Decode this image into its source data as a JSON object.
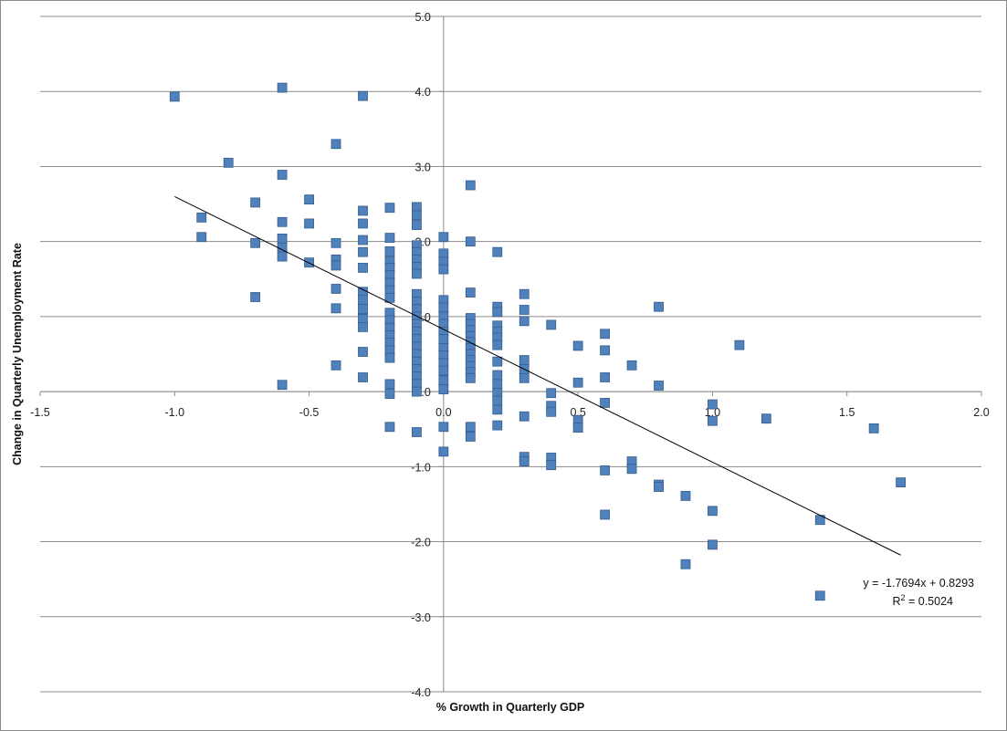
{
  "chart_data": {
    "type": "scatter",
    "title": "",
    "xlabel": "% Growth in Quarterly GDP",
    "ylabel": "Change in Quarterly Unemployment Rate",
    "xlim": [
      -1.5,
      2.0
    ],
    "ylim": [
      -4.0,
      5.0
    ],
    "x_ticks": [
      -1.5,
      -1.0,
      -0.5,
      0.0,
      0.5,
      1.0,
      1.5,
      2.0
    ],
    "y_ticks": [
      5.0,
      4.0,
      3.0,
      2.0,
      1.0,
      0.0,
      -1.0,
      -2.0,
      -3.0,
      -4.0
    ],
    "x_tick_labels": [
      "-1.5",
      "-1.0",
      "-0.5",
      "0.0",
      "0.5",
      "1.0",
      "1.5",
      "2.0"
    ],
    "y_tick_labels": [
      "5.0",
      "4.0",
      "3.0",
      "2.0",
      "1.0",
      "0.0",
      "-1.0",
      "-2.0",
      "-3.0",
      "-4.0"
    ],
    "grid": "horizontal",
    "marker_color": "#4f81bd",
    "marker_edge": "#385d8a",
    "trendline": {
      "slope": -1.7694,
      "intercept": 0.8293,
      "x_range": [
        -1.0,
        1.7
      ],
      "equation": "y = -1.7694x + 0.8293",
      "r2_prefix": "R",
      "r2_suffix": " = 0.5024",
      "r2_sup": "2"
    },
    "points": [
      [
        -1.0,
        3.93
      ],
      [
        -0.6,
        4.05
      ],
      [
        -0.3,
        3.94
      ],
      [
        -0.4,
        3.3
      ],
      [
        -0.8,
        3.05
      ],
      [
        -0.6,
        2.89
      ],
      [
        -0.9,
        2.32
      ],
      [
        -0.9,
        2.06
      ],
      [
        -0.7,
        2.52
      ],
      [
        -0.7,
        1.98
      ],
      [
        -0.7,
        1.26
      ],
      [
        -0.6,
        2.26
      ],
      [
        -0.6,
        2.04
      ],
      [
        -0.6,
        1.92
      ],
      [
        -0.6,
        1.8
      ],
      [
        -0.6,
        0.09
      ],
      [
        -0.5,
        2.56
      ],
      [
        -0.5,
        2.24
      ],
      [
        -0.5,
        1.72
      ],
      [
        -0.4,
        1.98
      ],
      [
        -0.4,
        1.76
      ],
      [
        -0.4,
        1.68
      ],
      [
        -0.4,
        1.37
      ],
      [
        -0.4,
        1.11
      ],
      [
        -0.4,
        0.35
      ],
      [
        -0.3,
        2.41
      ],
      [
        -0.3,
        2.24
      ],
      [
        -0.3,
        2.02
      ],
      [
        -0.3,
        1.86
      ],
      [
        -0.3,
        1.65
      ],
      [
        -0.3,
        1.33
      ],
      [
        -0.3,
        1.22
      ],
      [
        -0.3,
        1.1
      ],
      [
        -0.3,
        0.97
      ],
      [
        -0.3,
        0.86
      ],
      [
        -0.3,
        0.53
      ],
      [
        -0.3,
        0.19
      ],
      [
        -0.2,
        2.45
      ],
      [
        -0.2,
        2.05
      ],
      [
        -0.2,
        1.87
      ],
      [
        -0.2,
        1.74
      ],
      [
        -0.2,
        1.65
      ],
      [
        -0.2,
        1.55
      ],
      [
        -0.2,
        1.45
      ],
      [
        -0.2,
        1.35
      ],
      [
        -0.2,
        1.25
      ],
      [
        -0.2,
        1.05
      ],
      [
        -0.2,
        0.95
      ],
      [
        -0.2,
        0.85
      ],
      [
        -0.2,
        0.75
      ],
      [
        -0.2,
        0.65
      ],
      [
        -0.2,
        0.55
      ],
      [
        -0.2,
        0.45
      ],
      [
        -0.2,
        0.1
      ],
      [
        -0.2,
        -0.03
      ],
      [
        -0.2,
        -0.47
      ],
      [
        -0.1,
        2.46
      ],
      [
        -0.1,
        2.35
      ],
      [
        -0.1,
        2.22
      ],
      [
        -0.1,
        1.95
      ],
      [
        -0.1,
        1.86
      ],
      [
        -0.1,
        1.76
      ],
      [
        -0.1,
        1.66
      ],
      [
        -0.1,
        1.57
      ],
      [
        -0.1,
        1.3
      ],
      [
        -0.1,
        1.2
      ],
      [
        -0.1,
        1.1
      ],
      [
        -0.1,
        1.0
      ],
      [
        -0.1,
        0.9
      ],
      [
        -0.1,
        0.8
      ],
      [
        -0.1,
        0.7
      ],
      [
        -0.1,
        0.6
      ],
      [
        -0.1,
        0.5
      ],
      [
        -0.1,
        0.4
      ],
      [
        -0.1,
        0.3
      ],
      [
        -0.1,
        0.2
      ],
      [
        -0.1,
        0.1
      ],
      [
        -0.1,
        0.0
      ],
      [
        -0.1,
        -0.54
      ],
      [
        0.0,
        2.06
      ],
      [
        0.0,
        1.84
      ],
      [
        0.0,
        1.73
      ],
      [
        0.0,
        1.63
      ],
      [
        0.0,
        1.22
      ],
      [
        0.0,
        1.12
      ],
      [
        0.0,
        1.0
      ],
      [
        0.0,
        0.9
      ],
      [
        0.0,
        0.8
      ],
      [
        0.0,
        0.7
      ],
      [
        0.0,
        0.58
      ],
      [
        0.0,
        0.48
      ],
      [
        0.0,
        0.38
      ],
      [
        0.0,
        0.28
      ],
      [
        0.0,
        0.15
      ],
      [
        0.0,
        0.03
      ],
      [
        0.0,
        -0.47
      ],
      [
        0.0,
        -0.8
      ],
      [
        0.1,
        2.75
      ],
      [
        0.1,
        2.0
      ],
      [
        0.1,
        1.32
      ],
      [
        0.1,
        0.98
      ],
      [
        0.1,
        0.9
      ],
      [
        0.1,
        0.82
      ],
      [
        0.1,
        0.74
      ],
      [
        0.1,
        0.66
      ],
      [
        0.1,
        0.58
      ],
      [
        0.1,
        0.5
      ],
      [
        0.1,
        0.42
      ],
      [
        0.1,
        0.34
      ],
      [
        0.1,
        0.26
      ],
      [
        0.1,
        0.18
      ],
      [
        0.1,
        -0.47
      ],
      [
        0.1,
        -0.6
      ],
      [
        0.2,
        1.86
      ],
      [
        0.2,
        1.13
      ],
      [
        0.2,
        1.06
      ],
      [
        0.2,
        0.88
      ],
      [
        0.2,
        0.8
      ],
      [
        0.2,
        0.72
      ],
      [
        0.2,
        0.62
      ],
      [
        0.2,
        0.4
      ],
      [
        0.2,
        0.22
      ],
      [
        0.2,
        0.1
      ],
      [
        0.2,
        -0.02
      ],
      [
        0.2,
        -0.12
      ],
      [
        0.2,
        -0.24
      ],
      [
        0.2,
        -0.45
      ],
      [
        0.3,
        1.3
      ],
      [
        0.3,
        1.09
      ],
      [
        0.3,
        0.94
      ],
      [
        0.3,
        0.42
      ],
      [
        0.3,
        0.3
      ],
      [
        0.3,
        0.18
      ],
      [
        0.3,
        -0.33
      ],
      [
        0.3,
        -0.87
      ],
      [
        0.3,
        -0.93
      ],
      [
        0.4,
        0.89
      ],
      [
        0.4,
        -0.02
      ],
      [
        0.4,
        -0.19
      ],
      [
        0.4,
        -0.27
      ],
      [
        0.4,
        -0.88
      ],
      [
        0.4,
        -0.98
      ],
      [
        0.5,
        0.61
      ],
      [
        0.5,
        0.12
      ],
      [
        0.5,
        -0.38
      ],
      [
        0.5,
        -0.48
      ],
      [
        0.6,
        0.77
      ],
      [
        0.6,
        0.55
      ],
      [
        0.6,
        0.19
      ],
      [
        0.6,
        -0.15
      ],
      [
        0.6,
        -1.05
      ],
      [
        0.6,
        -1.64
      ],
      [
        0.7,
        0.35
      ],
      [
        0.7,
        -0.93
      ],
      [
        0.7,
        -1.03
      ],
      [
        0.8,
        1.13
      ],
      [
        0.8,
        0.08
      ],
      [
        0.8,
        -1.24
      ],
      [
        0.8,
        -1.27
      ],
      [
        0.9,
        -1.39
      ],
      [
        0.9,
        -2.3
      ],
      [
        1.0,
        -0.17
      ],
      [
        1.0,
        -0.39
      ],
      [
        1.0,
        -1.59
      ],
      [
        1.0,
        -2.04
      ],
      [
        1.1,
        0.62
      ],
      [
        1.2,
        -0.36
      ],
      [
        1.4,
        -1.71
      ],
      [
        1.4,
        -2.72
      ],
      [
        1.6,
        -0.49
      ],
      [
        1.7,
        -1.21
      ]
    ]
  }
}
